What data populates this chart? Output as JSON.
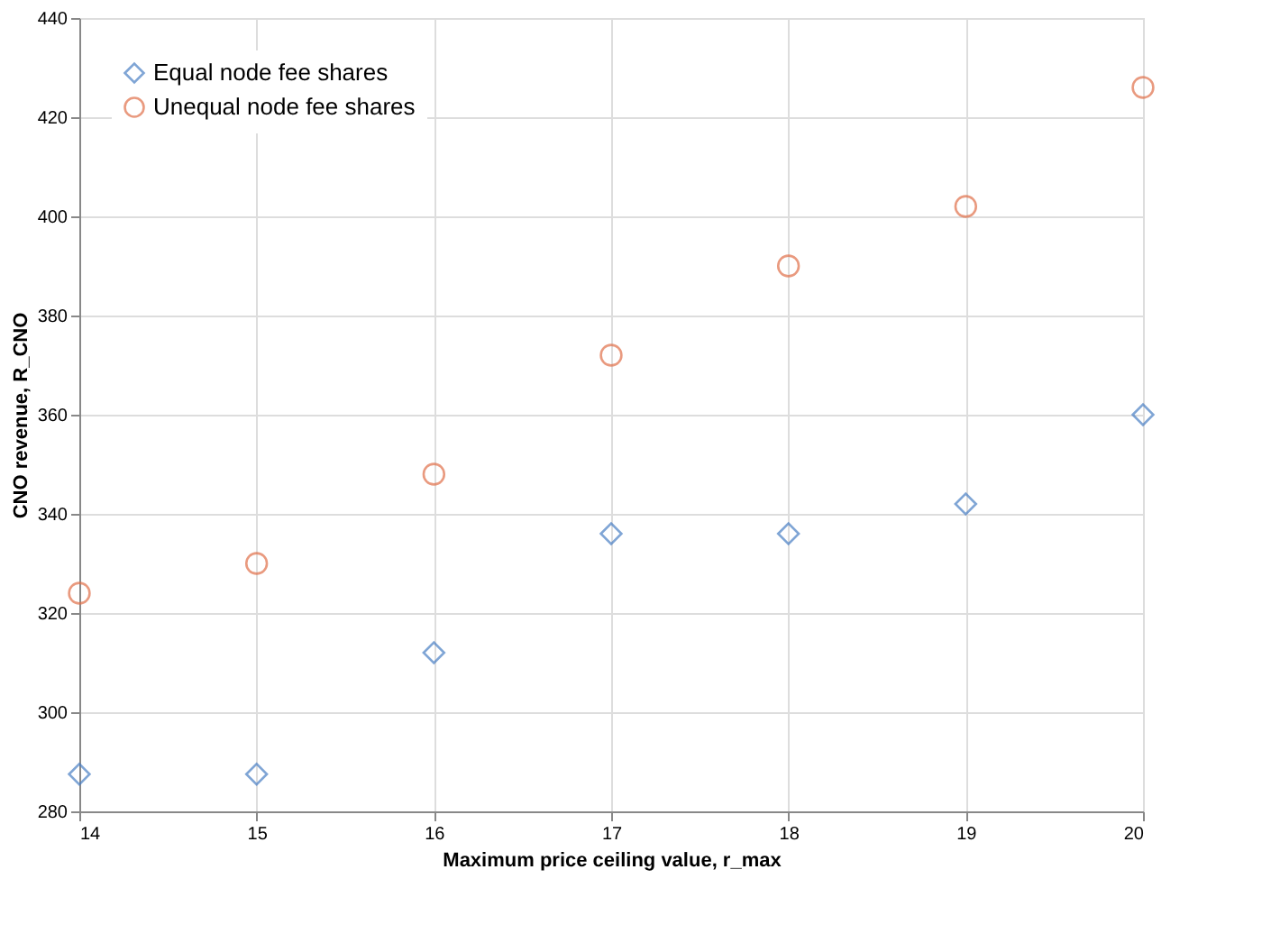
{
  "chart_data": {
    "type": "scatter",
    "xlabel": "Maximum price ceiling value, r_max",
    "ylabel": "CNO revenue, R_CNO",
    "x": [
      14,
      15,
      16,
      17,
      18,
      19,
      20
    ],
    "series": [
      {
        "name": "Equal node fee shares",
        "color": "#4a7fc4",
        "marker": "diamond",
        "values": [
          287.5,
          287.5,
          312,
          336,
          336,
          342,
          360
        ]
      },
      {
        "name": "Unequal node fee shares",
        "color": "#e0704a",
        "marker": "circle",
        "values": [
          324,
          330,
          348,
          372,
          390,
          402,
          426
        ]
      }
    ],
    "xlim": [
      14,
      20
    ],
    "xticks": [
      14,
      15,
      16,
      17,
      18,
      19,
      20
    ],
    "ylim": [
      280,
      440
    ],
    "yticks": [
      280,
      300,
      320,
      340,
      360,
      380,
      400,
      420,
      440
    ],
    "grid": true,
    "legend": "top left"
  }
}
